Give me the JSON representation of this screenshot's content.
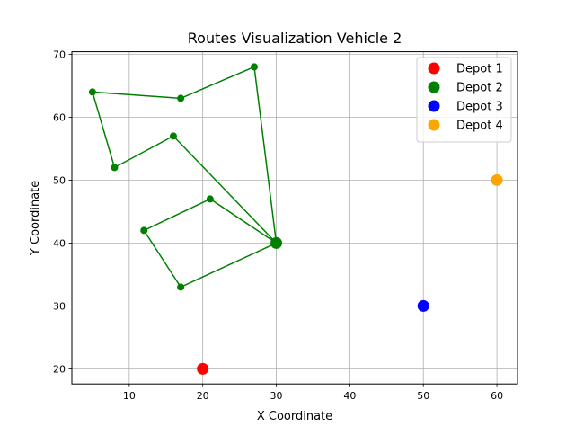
{
  "chart_data": {
    "type": "scatter",
    "title": "Routes Visualization Vehicle 2",
    "xlabel": "X Coordinate",
    "ylabel": "Y Coordinate",
    "xlim": [
      2.2,
      62.8
    ],
    "ylim": [
      17.6,
      70.4
    ],
    "xticks": [
      10,
      20,
      30,
      40,
      50,
      60
    ],
    "yticks": [
      20,
      30,
      40,
      50,
      60,
      70
    ],
    "grid": true,
    "legend_position": "top-right",
    "depots": [
      {
        "name": "Depot 1",
        "x": 20,
        "y": 20,
        "color": "#ff0000"
      },
      {
        "name": "Depot 2",
        "x": 30,
        "y": 40,
        "color": "#008000"
      },
      {
        "name": "Depot 3",
        "x": 50,
        "y": 30,
        "color": "#0000ff"
      },
      {
        "name": "Depot 4",
        "x": 60,
        "y": 50,
        "color": "#ffa500"
      }
    ],
    "routes": [
      {
        "color": "#008000",
        "points": [
          {
            "x": 30,
            "y": 40
          },
          {
            "x": 27,
            "y": 68
          },
          {
            "x": 17,
            "y": 63
          },
          {
            "x": 5,
            "y": 64
          },
          {
            "x": 8,
            "y": 52
          },
          {
            "x": 16,
            "y": 57
          },
          {
            "x": 30,
            "y": 40
          },
          {
            "x": 21,
            "y": 47
          },
          {
            "x": 12,
            "y": 42
          },
          {
            "x": 17,
            "y": 33
          },
          {
            "x": 30,
            "y": 40
          }
        ]
      }
    ]
  }
}
